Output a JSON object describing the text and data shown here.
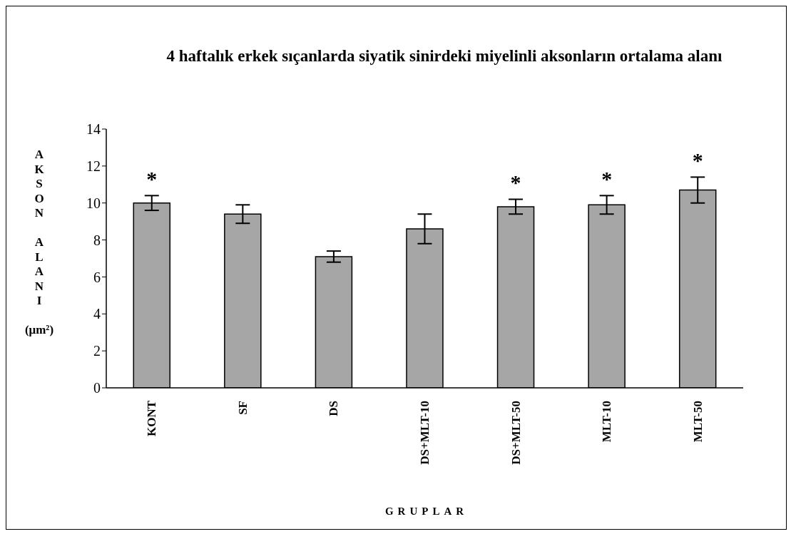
{
  "chart_data": {
    "type": "bar",
    "title": "4 haftalık erkek sıçanlarda siyatik sinirdeki miyelinli aksonların ortalama alanı",
    "xlabel": "GRUPLAR",
    "ylabel": "AKSON ALANI (μm²)",
    "categories": [
      "KONT",
      "SF",
      "DS",
      "DS+MLT-10",
      "DS+MLT-50",
      "MLT-10",
      "MLT-50"
    ],
    "values": [
      10.0,
      9.4,
      7.1,
      8.6,
      9.8,
      9.9,
      10.7
    ],
    "errors": [
      0.4,
      0.5,
      0.3,
      0.8,
      0.4,
      0.5,
      0.7
    ],
    "color": "#a6a6a6",
    "ylim": [
      0,
      14
    ],
    "yticks": [
      0,
      2,
      4,
      6,
      8,
      10,
      12,
      14
    ],
    "value_labels": [
      "*",
      null,
      null,
      null,
      "*",
      "*",
      "*"
    ],
    "grid": false,
    "legend": false
  }
}
